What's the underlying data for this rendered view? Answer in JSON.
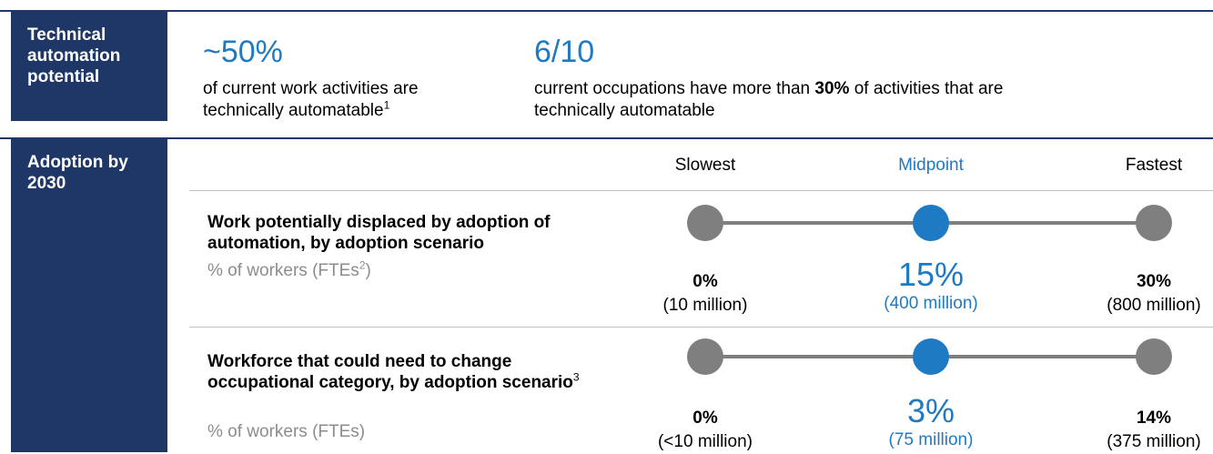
{
  "sections": [
    {
      "label": "Technical automation potential",
      "stats": [
        {
          "value": "~50%",
          "text": "of current work activities are technically automatable",
          "note": "1"
        },
        {
          "value": "6/10",
          "text_before": "current occupations have more than ",
          "text_bold": "30%",
          "text_after": " of activities that are technically automatable"
        }
      ]
    },
    {
      "label": "Adoption by 2030",
      "scenarios": [
        "Slowest",
        "Midpoint",
        "Fastest"
      ],
      "rows": [
        {
          "title": "Work potentially displaced by adoption of automation, by adoption scenario",
          "title_note": null,
          "subtitle": "% of workers (FTEs",
          "subtitle_note": "2",
          "subtitle_end": ")",
          "points": [
            {
              "pct": "0%",
              "count": "(10 million)"
            },
            {
              "pct": "15%",
              "count": "(400 million)"
            },
            {
              "pct": "30%",
              "count": "(800 million)"
            }
          ]
        },
        {
          "title": "Workforce that could need to change occupational category, by adoption scenario",
          "title_note": "3",
          "subtitle": "% of workers (FTEs)",
          "subtitle_note": null,
          "subtitle_end": null,
          "points": [
            {
              "pct": "0%",
              "count": "(<10 million)"
            },
            {
              "pct": "3%",
              "count": "(75 million)"
            },
            {
              "pct": "14%",
              "count": "(375 million)"
            }
          ]
        }
      ]
    }
  ]
}
